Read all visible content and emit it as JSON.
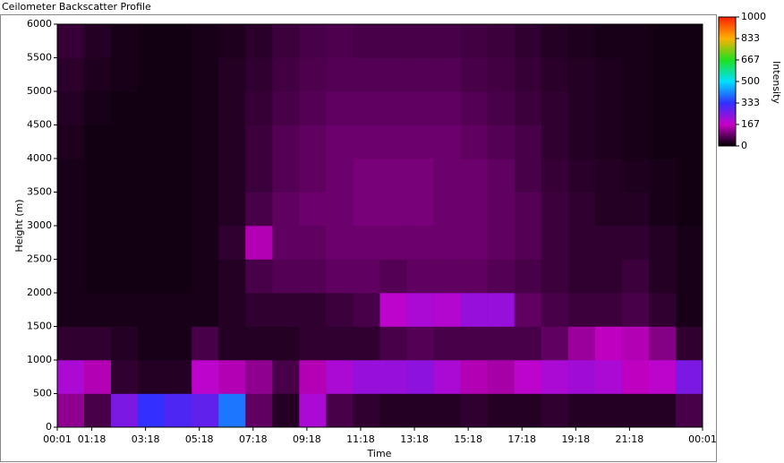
{
  "chart_data": {
    "type": "heatmap",
    "title": "Ceilometer Backscatter Profile",
    "x_label": "Time",
    "y_label": "Height (m)",
    "colorbar_label": "Intensity",
    "xlim": [
      1,
      1441
    ],
    "ylim": [
      0,
      6000
    ],
    "clim": [
      0,
      1000
    ],
    "xticks": [
      {
        "value": 1,
        "label": "00:01"
      },
      {
        "value": 78,
        "label": "01:18"
      },
      {
        "value": 198,
        "label": "03:18"
      },
      {
        "value": 318,
        "label": "05:18"
      },
      {
        "value": 438,
        "label": "07:18"
      },
      {
        "value": 558,
        "label": "09:18"
      },
      {
        "value": 678,
        "label": "11:18"
      },
      {
        "value": 798,
        "label": "13:18"
      },
      {
        "value": 918,
        "label": "15:18"
      },
      {
        "value": 1038,
        "label": "17:18"
      },
      {
        "value": 1158,
        "label": "19:18"
      },
      {
        "value": 1278,
        "label": "21:18"
      },
      {
        "value": 1441,
        "label": "00:01"
      }
    ],
    "yticks": [
      0,
      500,
      1000,
      1500,
      2000,
      2500,
      3000,
      3500,
      4000,
      4500,
      5000,
      5500,
      6000
    ],
    "cticks": [
      0,
      167,
      333,
      500,
      667,
      833,
      1000
    ],
    "colormap": [
      "#000000",
      "#c800c8",
      "#3030ff",
      "#00e0ff",
      "#20e020",
      "#ffb000",
      "#ff2000"
    ],
    "x_edges": [
      1,
      61,
      121,
      181,
      241,
      301,
      361,
      421,
      481,
      541,
      601,
      661,
      721,
      781,
      841,
      901,
      961,
      1021,
      1081,
      1141,
      1201,
      1261,
      1321,
      1381,
      1441
    ],
    "y_edges": [
      0,
      500,
      1000,
      1500,
      2000,
      2500,
      3000,
      3500,
      4000,
      4500,
      5000,
      5500,
      6000
    ],
    "z": [
      [
        120,
        60,
        250,
        330,
        300,
        280,
        400,
        80,
        30,
        200,
        60,
        40,
        30,
        30,
        30,
        40,
        30,
        30,
        40,
        30,
        30,
        30,
        30,
        60
      ],
      [
        200,
        150,
        40,
        30,
        30,
        180,
        150,
        120,
        60,
        150,
        200,
        220,
        220,
        230,
        200,
        150,
        140,
        180,
        200,
        210,
        200,
        160,
        180,
        250
      ],
      [
        40,
        40,
        30,
        20,
        20,
        60,
        30,
        30,
        30,
        40,
        40,
        40,
        60,
        70,
        60,
        60,
        60,
        60,
        80,
        130,
        160,
        150,
        110,
        40
      ],
      [
        20,
        20,
        20,
        20,
        20,
        20,
        30,
        40,
        40,
        40,
        50,
        60,
        180,
        200,
        190,
        220,
        220,
        80,
        60,
        50,
        50,
        60,
        40,
        20
      ],
      [
        20,
        15,
        15,
        15,
        15,
        20,
        30,
        60,
        70,
        70,
        80,
        80,
        70,
        80,
        80,
        80,
        70,
        60,
        50,
        40,
        40,
        50,
        30,
        20
      ],
      [
        20,
        15,
        15,
        15,
        15,
        20,
        40,
        150,
        80,
        80,
        90,
        90,
        90,
        90,
        90,
        90,
        80,
        70,
        50,
        40,
        40,
        40,
        30,
        20
      ],
      [
        20,
        15,
        15,
        15,
        15,
        20,
        30,
        60,
        80,
        90,
        90,
        100,
        100,
        100,
        90,
        90,
        80,
        70,
        50,
        40,
        30,
        30,
        20,
        15
      ],
      [
        20,
        15,
        15,
        15,
        15,
        20,
        30,
        50,
        70,
        80,
        90,
        100,
        100,
        100,
        90,
        90,
        80,
        60,
        45,
        35,
        30,
        25,
        20,
        15
      ],
      [
        25,
        15,
        15,
        15,
        15,
        20,
        30,
        50,
        70,
        80,
        90,
        90,
        90,
        90,
        90,
        80,
        70,
        60,
        40,
        30,
        25,
        20,
        15,
        15
      ],
      [
        30,
        20,
        15,
        15,
        15,
        20,
        30,
        45,
        60,
        70,
        80,
        80,
        80,
        80,
        80,
        70,
        60,
        50,
        40,
        30,
        25,
        20,
        15,
        15
      ],
      [
        35,
        25,
        20,
        15,
        15,
        20,
        30,
        40,
        55,
        65,
        70,
        70,
        70,
        70,
        70,
        60,
        55,
        45,
        35,
        30,
        25,
        20,
        15,
        15
      ],
      [
        45,
        30,
        20,
        15,
        15,
        20,
        25,
        35,
        50,
        60,
        65,
        60,
        60,
        60,
        60,
        55,
        50,
        40,
        30,
        25,
        20,
        20,
        15,
        15
      ]
    ]
  }
}
